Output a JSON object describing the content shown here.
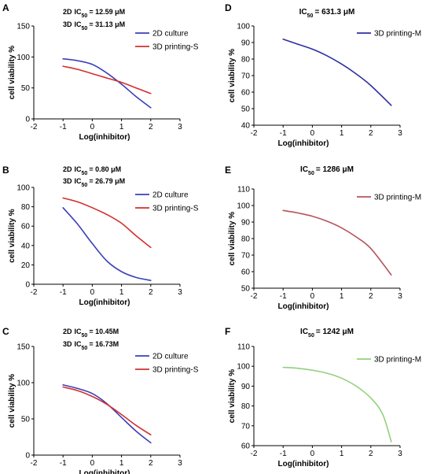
{
  "chart_data": [
    {
      "panel": "A",
      "type": "line",
      "xlabel": "Log(inhibitor)",
      "ylabel": "cell viability %",
      "xlim": [
        -2,
        3
      ],
      "ylim": [
        0,
        150
      ],
      "xticks": [
        "-2",
        "-1",
        "0",
        "1",
        "2",
        "3"
      ],
      "yticks": [
        "0",
        "50",
        "100",
        "150"
      ],
      "ic_lines": [
        {
          "tag": "2D",
          "label": "IC50",
          "value": "= 12.59 μM"
        },
        {
          "tag": "3D",
          "label": "IC50",
          "value": "= 31.13 μM"
        }
      ],
      "legend_position": "top-right",
      "series": [
        {
          "name": "2D culture",
          "color": "#3b3fb8",
          "x": [
            -1,
            -0.5,
            0,
            0.5,
            1,
            1.5,
            2
          ],
          "y": [
            97,
            94,
            88,
            74,
            56,
            36,
            18
          ]
        },
        {
          "name": "3D printing-S",
          "color": "#d32f2f",
          "x": [
            -1,
            -0.5,
            0,
            0.5,
            1,
            1.5,
            2
          ],
          "y": [
            85,
            80,
            73,
            66,
            59,
            50,
            41
          ]
        }
      ]
    },
    {
      "panel": "B",
      "type": "line",
      "xlabel": "Log(inhibitor)",
      "ylabel": "cell viability %",
      "xlim": [
        -2,
        3
      ],
      "ylim": [
        0,
        100
      ],
      "xticks": [
        "-2",
        "-1",
        "0",
        "1",
        "2",
        "3"
      ],
      "yticks": [
        "0",
        "20",
        "40",
        "60",
        "80",
        "100"
      ],
      "ic_lines": [
        {
          "tag": "2D",
          "label": "IC50",
          "value": "= 0.80 μM"
        },
        {
          "tag": "3D",
          "label": "IC50",
          "value": "= 26.79 μM"
        }
      ],
      "legend_position": "top-right",
      "series": [
        {
          "name": "2D culture",
          "color": "#3b3fb8",
          "x": [
            -1,
            -0.5,
            0,
            0.5,
            1,
            1.5,
            2
          ],
          "y": [
            79,
            62,
            42,
            24,
            13,
            7,
            4
          ]
        },
        {
          "name": "3D printing-S",
          "color": "#d32f2f",
          "x": [
            -1,
            -0.5,
            0,
            0.5,
            1,
            1.5,
            2
          ],
          "y": [
            89,
            85,
            79,
            72,
            63,
            50,
            38
          ]
        }
      ]
    },
    {
      "panel": "C",
      "type": "line",
      "xlabel": "Log(inhibitor)",
      "ylabel": "cell viability %",
      "xlim": [
        -2,
        3
      ],
      "ylim": [
        0,
        150
      ],
      "xticks": [
        "-2",
        "-1",
        "0",
        "1",
        "2",
        "3"
      ],
      "yticks": [
        "0",
        "50",
        "100",
        "150"
      ],
      "ic_lines": [
        {
          "tag": "2D",
          "label": "IC50",
          "value": "= 10.45M"
        },
        {
          "tag": "3D",
          "label": "IC50",
          "value": "= 16.73M"
        }
      ],
      "legend_position": "top-right",
      "series": [
        {
          "name": "2D culture",
          "color": "#3b3fb8",
          "x": [
            -1,
            -0.5,
            0,
            0.5,
            1,
            1.5,
            2
          ],
          "y": [
            97,
            92,
            85,
            71,
            52,
            33,
            17
          ]
        },
        {
          "name": "3D printing-S",
          "color": "#d32f2f",
          "x": [
            -1,
            -0.5,
            0,
            0.5,
            1,
            1.5,
            2
          ],
          "y": [
            94,
            89,
            81,
            70,
            56,
            41,
            28
          ]
        }
      ]
    },
    {
      "panel": "D",
      "type": "line",
      "xlabel": "Log(inhibitor)",
      "ylabel": "cell viability %",
      "xlim": [
        -2,
        3
      ],
      "ylim": [
        40,
        100
      ],
      "xticks": [
        "-2",
        "-1",
        "0",
        "1",
        "2",
        "3"
      ],
      "yticks": [
        "40",
        "50",
        "60",
        "70",
        "80",
        "90",
        "100"
      ],
      "ic_lines": [
        {
          "tag": "",
          "label": "IC50",
          "value": "= 631.3 μM"
        }
      ],
      "legend_position": "top-right",
      "series": [
        {
          "name": "3D printing-M",
          "color": "#2c2f9e",
          "x": [
            -1,
            -0.5,
            0,
            0.5,
            1,
            1.5,
            2,
            2.7
          ],
          "y": [
            92,
            89,
            86,
            82,
            77,
            71,
            64,
            52
          ]
        }
      ]
    },
    {
      "panel": "E",
      "type": "line",
      "xlabel": "Log(inhibitor)",
      "ylabel": "cell viability %",
      "xlim": [
        -2,
        3
      ],
      "ylim": [
        50,
        110
      ],
      "xticks": [
        "-2",
        "-1",
        "0",
        "1",
        "2",
        "3"
      ],
      "yticks": [
        "50",
        "60",
        "70",
        "80",
        "90",
        "100",
        "110"
      ],
      "ic_lines": [
        {
          "tag": "",
          "label": "IC50",
          "value": "= 1286 μM"
        }
      ],
      "legend_position": "top-right",
      "series": [
        {
          "name": "3D printing-M",
          "color": "#b5545c",
          "x": [
            -1,
            -0.5,
            0,
            0.5,
            1,
            1.5,
            2,
            2.7
          ],
          "y": [
            97,
            95.5,
            93.5,
            90.5,
            86.5,
            81,
            74,
            58
          ]
        }
      ]
    },
    {
      "panel": "F",
      "type": "line",
      "xlabel": "Log(inhibitor)",
      "ylabel": "cell viability %",
      "xlim": [
        -2,
        3
      ],
      "ylim": [
        60,
        110
      ],
      "xticks": [
        "-2",
        "-1",
        "0",
        "1",
        "2",
        "3"
      ],
      "yticks": [
        "60",
        "70",
        "80",
        "90",
        "100",
        "110"
      ],
      "ic_lines": [
        {
          "tag": "",
          "label": "IC50",
          "value": "= 1242 μM"
        }
      ],
      "legend_position": "top-right",
      "series": [
        {
          "name": "3D printing-M",
          "color": "#92d07c",
          "x": [
            -1,
            -0.5,
            0,
            0.5,
            1,
            1.5,
            2,
            2.4,
            2.7
          ],
          "y": [
            99.5,
            99,
            98,
            96.5,
            94,
            90,
            84,
            76,
            62
          ]
        }
      ]
    }
  ]
}
